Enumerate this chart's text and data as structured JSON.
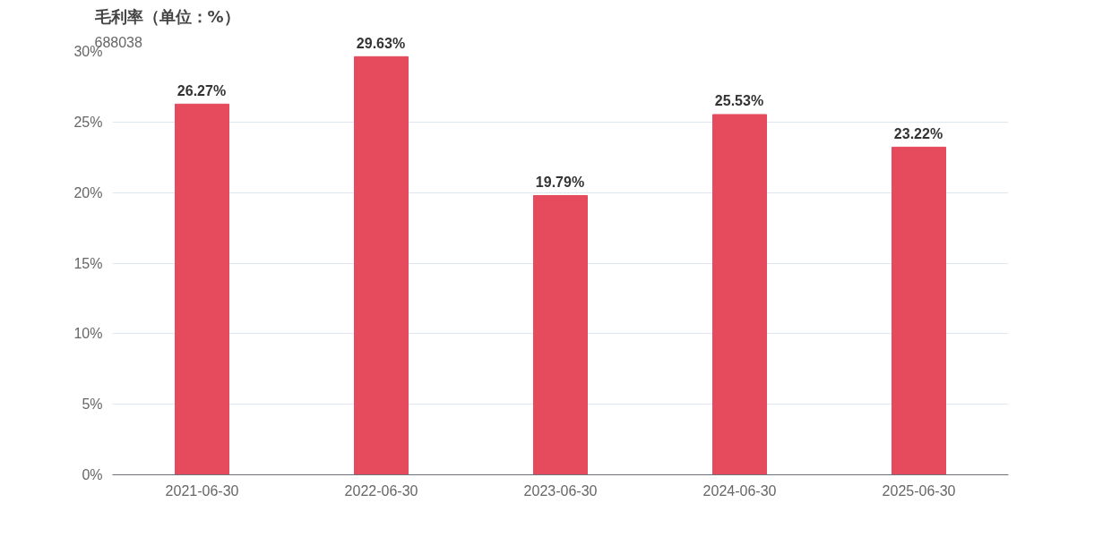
{
  "chart_data": {
    "type": "bar",
    "title": "毛利率（单位：%）",
    "subtitle": "688038",
    "categories": [
      "2021-06-30",
      "2022-06-30",
      "2023-06-30",
      "2024-06-30",
      "2025-06-30"
    ],
    "values": [
      26.27,
      29.63,
      19.79,
      25.53,
      23.22
    ],
    "value_labels": [
      "26.27%",
      "29.63%",
      "19.79%",
      "25.53%",
      "23.22%"
    ],
    "color": "#e64b5d",
    "ylim": [
      0,
      30
    ],
    "yticks": [
      {
        "value": 0,
        "label": "0%"
      },
      {
        "value": 5,
        "label": "5%"
      },
      {
        "value": 10,
        "label": "10%"
      },
      {
        "value": 15,
        "label": "15%"
      },
      {
        "value": 20,
        "label": "20%"
      },
      {
        "value": 25,
        "label": "25%"
      },
      {
        "value": 30,
        "label": "30%"
      }
    ],
    "grid": "y"
  }
}
